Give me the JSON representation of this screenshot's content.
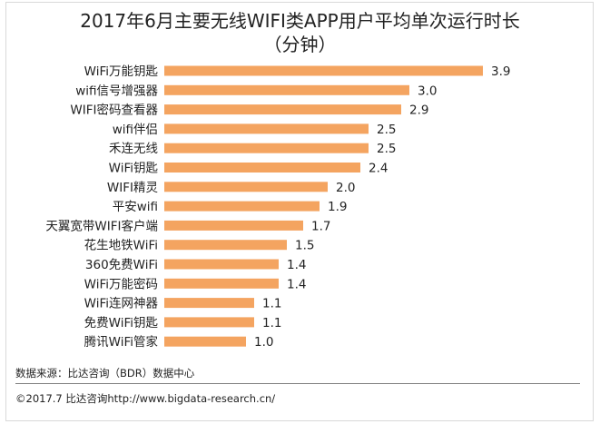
{
  "chart_data": {
    "type": "bar",
    "orientation": "horizontal",
    "title": "2017年6月主要无线WIFI类APP用户平均单次运行时长\n（分钟）",
    "categories": [
      "WiFi万能钥匙",
      "wifi信号增强器",
      "WIFI密码查看器",
      "wifi伴侣",
      "禾连无线",
      "WiFi钥匙",
      "WIFI精灵",
      "平安wifi",
      "天翼宽带WIFI客户端",
      "花生地铁WiFi",
      "360免费WiFi",
      "WiFi万能密码",
      "WiFi连网神器",
      "免费WiFi钥匙",
      "腾讯WiFi管家"
    ],
    "values": [
      3.9,
      3.0,
      2.9,
      2.5,
      2.5,
      2.4,
      2.0,
      1.9,
      1.7,
      1.5,
      1.4,
      1.4,
      1.1,
      1.1,
      1.0
    ],
    "value_labels": [
      "3.9",
      "3.0",
      "2.9",
      "2.5",
      "2.5",
      "2.4",
      "2.0",
      "1.9",
      "1.7",
      "1.5",
      "1.4",
      "1.4",
      "1.1",
      "1.1",
      "1.0"
    ],
    "xlim": [
      0,
      4
    ],
    "bar_color": "#f4a460",
    "grid": false,
    "legend": "none"
  },
  "footer": {
    "source": "数据来源：比达咨询（BDR）数据中心",
    "copyright": "©2017.7    比达咨询http://www.bigdata-research.cn/"
  }
}
